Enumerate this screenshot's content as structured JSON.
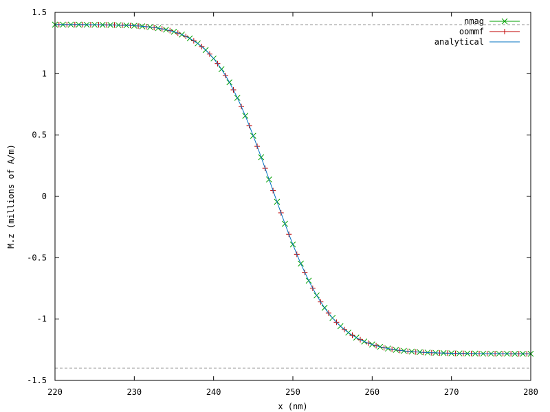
{
  "chart_data": {
    "type": "line",
    "xlabel": "x (nm)",
    "ylabel": "M.z (millions of A/m)",
    "xlim": [
      220,
      280
    ],
    "ylim": [
      -1.5,
      1.5
    ],
    "x_ticks": [
      220,
      230,
      240,
      250,
      260,
      270,
      280
    ],
    "y_ticks": [
      1.5,
      1,
      0.5,
      0,
      -0.5,
      -1,
      -1.5
    ],
    "x_tick_labels": [
      "220",
      "230",
      "240",
      "250",
      "260",
      "270",
      "280"
    ],
    "y_tick_labels": [
      "1.5",
      "1",
      "0.5",
      "0",
      "-0.5",
      "-1",
      "-1.5"
    ],
    "reference_lines": [
      1.4,
      -1.4
    ],
    "legend_placement": "top-right",
    "grid": false,
    "series": [
      {
        "name": "nmag",
        "color": "#00a000",
        "marker": "x",
        "x": [
          220.0,
          221.0,
          222.0,
          223.0,
          224.0,
          225.0,
          226.0,
          227.0,
          228.0,
          229.0,
          230.0,
          231.0,
          232.0,
          233.0,
          234.0,
          235.0,
          236.0,
          237.0,
          238.0,
          239.0,
          240.0,
          241.0,
          242.0,
          243.0,
          244.0,
          245.0,
          246.0,
          247.0,
          248.0,
          249.0,
          250.0,
          251.0,
          252.0,
          253.0,
          254.0,
          255.0,
          256.0,
          257.0,
          258.0,
          259.0,
          260.0,
          261.0,
          262.0,
          263.0,
          264.0,
          265.0,
          266.0,
          267.0,
          268.0,
          269.0,
          270.0,
          271.0,
          272.0,
          273.0,
          274.0,
          275.0,
          276.0,
          277.0,
          278.0,
          279.0,
          280.0
        ],
        "y": [
          1.4,
          1.4,
          1.4,
          1.4,
          1.399,
          1.399,
          1.398,
          1.397,
          1.396,
          1.394,
          1.391,
          1.386,
          1.38,
          1.371,
          1.359,
          1.342,
          1.319,
          1.288,
          1.247,
          1.193,
          1.124,
          1.037,
          0.93,
          0.803,
          0.657,
          0.494,
          0.319,
          0.138,
          -0.044,
          -0.223,
          -0.392,
          -0.548,
          -0.687,
          -0.807,
          -0.908,
          -0.991,
          -1.058,
          -1.11,
          -1.151,
          -1.183,
          -1.207,
          -1.226,
          -1.24,
          -1.251,
          -1.259,
          -1.265,
          -1.269,
          -1.273,
          -1.275,
          -1.277,
          -1.279,
          -1.28,
          -1.281,
          -1.281,
          -1.282,
          -1.282,
          -1.282,
          -1.282,
          -1.283,
          -1.283,
          -1.283
        ]
      },
      {
        "name": "oommf",
        "color": "#c00000",
        "marker": "+",
        "x": [
          220.5,
          221.5,
          222.5,
          223.5,
          224.5,
          225.5,
          226.5,
          227.5,
          228.5,
          229.5,
          230.5,
          231.5,
          232.5,
          233.5,
          234.5,
          235.5,
          236.5,
          237.5,
          238.5,
          239.5,
          240.5,
          241.5,
          242.5,
          243.5,
          244.5,
          245.5,
          246.5,
          247.5,
          248.5,
          249.5,
          250.5,
          251.5,
          252.5,
          253.5,
          254.5,
          255.5,
          256.5,
          257.5,
          258.5,
          259.5,
          260.5,
          261.5,
          262.5,
          263.5,
          264.5,
          265.5,
          266.5,
          267.5,
          268.5,
          269.5,
          270.5,
          271.5,
          272.5,
          273.5,
          274.5,
          275.5,
          276.5,
          277.5,
          278.5,
          279.5
        ],
        "y": [
          1.4,
          1.4,
          1.4,
          1.4,
          1.399,
          1.399,
          1.398,
          1.397,
          1.395,
          1.393,
          1.389,
          1.383,
          1.376,
          1.365,
          1.351,
          1.331,
          1.304,
          1.268,
          1.221,
          1.16,
          1.082,
          0.985,
          0.868,
          0.732,
          0.577,
          0.408,
          0.229,
          0.047,
          -0.134,
          -0.309,
          -0.472,
          -0.619,
          -0.749,
          -0.86,
          -0.951,
          -1.026,
          -1.085,
          -1.132,
          -1.168,
          -1.196,
          -1.217,
          -1.234,
          -1.246,
          -1.256,
          -1.263,
          -1.268,
          -1.272,
          -1.275,
          -1.277,
          -1.278,
          -1.28,
          -1.28,
          -1.281,
          -1.282,
          -1.282,
          -1.282,
          -1.282,
          -1.283,
          -1.283,
          -1.283
        ]
      },
      {
        "name": "analytical",
        "color": "#0070c0",
        "marker": "none",
        "x": [
          220.0,
          220.5,
          221.0,
          221.5,
          222.0,
          222.5,
          223.0,
          223.5,
          224.0,
          224.5,
          225.0,
          225.5,
          226.0,
          226.5,
          227.0,
          227.5,
          228.0,
          228.5,
          229.0,
          229.5,
          230.0,
          230.5,
          231.0,
          231.5,
          232.0,
          232.5,
          233.0,
          233.5,
          234.0,
          234.5,
          235.0,
          235.5,
          236.0,
          236.5,
          237.0,
          237.5,
          238.0,
          238.5,
          239.0,
          239.5,
          240.0,
          240.5,
          241.0,
          241.5,
          242.0,
          242.5,
          243.0,
          243.5,
          244.0,
          244.5,
          245.0,
          245.5,
          246.0,
          246.5,
          247.0,
          247.5,
          248.0,
          248.5,
          249.0,
          249.5,
          250.0,
          250.5,
          251.0,
          251.5,
          252.0,
          252.5,
          253.0,
          253.5,
          254.0,
          254.5,
          255.0,
          255.5,
          256.0,
          256.5,
          257.0,
          257.5,
          258.0,
          258.5,
          259.0,
          259.5,
          260.0,
          260.5,
          261.0,
          261.5,
          262.0,
          262.5,
          263.0,
          263.5,
          264.0,
          264.5,
          265.0,
          265.5,
          266.0,
          266.5,
          267.0,
          267.5,
          268.0,
          268.5,
          269.0,
          269.5,
          270.0,
          270.5,
          271.0,
          271.5,
          272.0,
          272.5,
          273.0,
          273.5,
          274.0,
          274.5,
          275.0,
          275.5,
          276.0,
          276.5,
          277.0,
          277.5,
          278.0,
          278.5,
          279.0,
          279.5,
          280.0
        ],
        "y": [
          1.4,
          1.4,
          1.4,
          1.4,
          1.4,
          1.4,
          1.4,
          1.4,
          1.399,
          1.399,
          1.399,
          1.399,
          1.398,
          1.398,
          1.397,
          1.397,
          1.396,
          1.395,
          1.394,
          1.393,
          1.391,
          1.389,
          1.386,
          1.383,
          1.38,
          1.376,
          1.371,
          1.365,
          1.359,
          1.351,
          1.342,
          1.331,
          1.319,
          1.304,
          1.288,
          1.268,
          1.247,
          1.221,
          1.193,
          1.16,
          1.124,
          1.082,
          1.037,
          0.985,
          0.93,
          0.868,
          0.803,
          0.732,
          0.657,
          0.577,
          0.494,
          0.408,
          0.319,
          0.229,
          0.138,
          0.047,
          -0.044,
          -0.134,
          -0.223,
          -0.309,
          -0.392,
          -0.472,
          -0.548,
          -0.619,
          -0.687,
          -0.749,
          -0.807,
          -0.86,
          -0.908,
          -0.951,
          -0.991,
          -1.026,
          -1.058,
          -1.085,
          -1.11,
          -1.132,
          -1.151,
          -1.168,
          -1.183,
          -1.196,
          -1.207,
          -1.217,
          -1.226,
          -1.234,
          -1.24,
          -1.246,
          -1.251,
          -1.256,
          -1.259,
          -1.263,
          -1.265,
          -1.268,
          -1.269,
          -1.272,
          -1.273,
          -1.275,
          -1.275,
          -1.277,
          -1.277,
          -1.278,
          -1.279,
          -1.28,
          -1.28,
          -1.28,
          -1.281,
          -1.281,
          -1.281,
          -1.282,
          -1.282,
          -1.282,
          -1.282,
          -1.282,
          -1.282,
          -1.282,
          -1.282,
          -1.283,
          -1.283,
          -1.283,
          -1.283,
          -1.283,
          -1.283
        ]
      }
    ]
  }
}
